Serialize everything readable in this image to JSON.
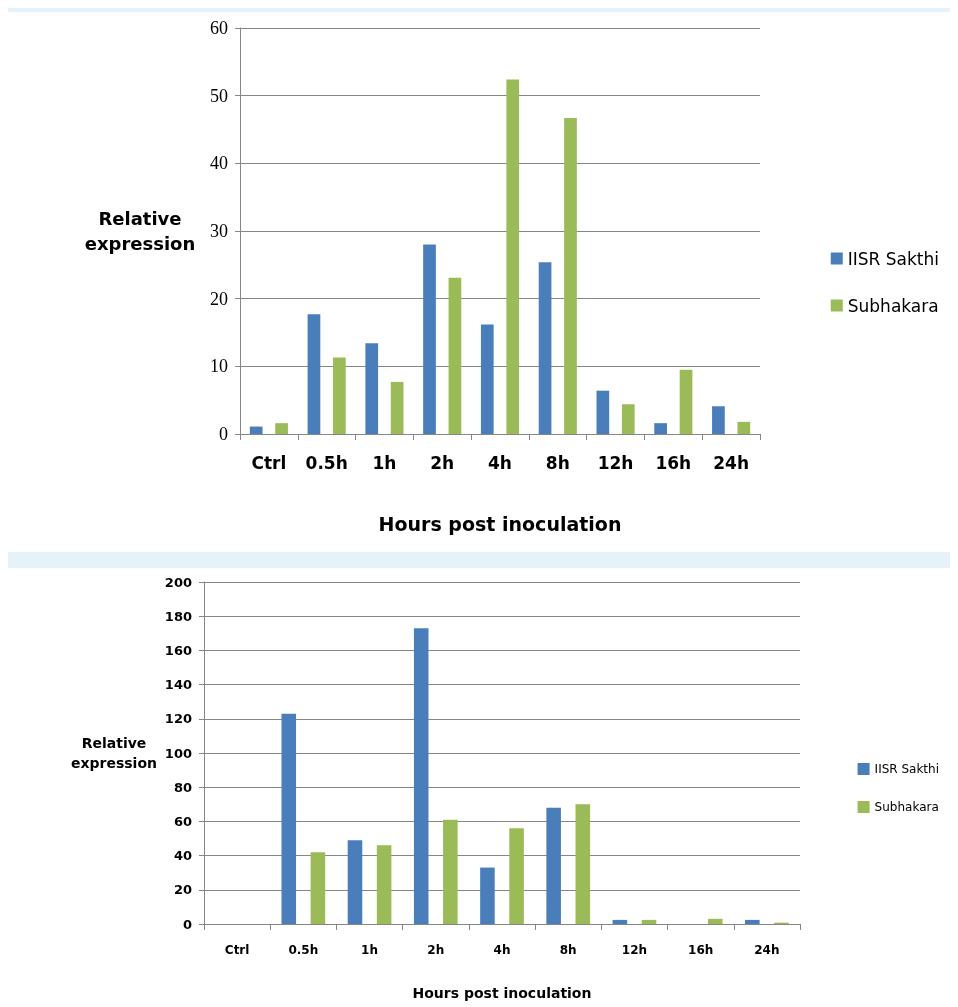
{
  "chart_data": [
    {
      "type": "bar",
      "xlabel": "Hours post inoculation",
      "ylabel": "Relative\nexpression",
      "categories": [
        "Ctrl",
        "0.5h",
        "1h",
        "2h",
        "4h",
        "8h",
        "12h",
        "16h",
        "24h"
      ],
      "series": [
        {
          "name": "IISR Sakthi",
          "color": "#4a7ebb",
          "values": [
            1.1,
            17.7,
            13.4,
            28,
            16.2,
            25.4,
            6.4,
            1.6,
            4.1
          ]
        },
        {
          "name": "Subhakara",
          "color": "#9bbb59",
          "values": [
            1.6,
            11.3,
            7.7,
            23.1,
            52.4,
            46.7,
            4.4,
            9.5,
            1.8
          ]
        }
      ],
      "ylim": [
        0,
        60
      ],
      "yticks": [
        0,
        10,
        20,
        30,
        40,
        50,
        60
      ],
      "grid": "y",
      "legend": "right"
    },
    {
      "type": "bar",
      "xlabel": "Hours post inoculation",
      "ylabel": "Relative\nexpression",
      "categories": [
        "Ctrl",
        "0.5h",
        "1h",
        "2h",
        "4h",
        "8h",
        "12h",
        "16h",
        "24h"
      ],
      "series": [
        {
          "name": "IISR Sakthi",
          "color": "#4a7ebb",
          "values": [
            0,
            123,
            49,
            173,
            33,
            68,
            2.4,
            0,
            2.4
          ]
        },
        {
          "name": "Subhakara",
          "color": "#9bbb59",
          "values": [
            0,
            42,
            46,
            61,
            56,
            70,
            2.4,
            3,
            0.8
          ]
        }
      ],
      "ylim": [
        0,
        200
      ],
      "yticks": [
        0,
        20,
        40,
        60,
        80,
        100,
        120,
        140,
        160,
        180,
        200
      ],
      "grid": "y",
      "legend": "right"
    }
  ]
}
